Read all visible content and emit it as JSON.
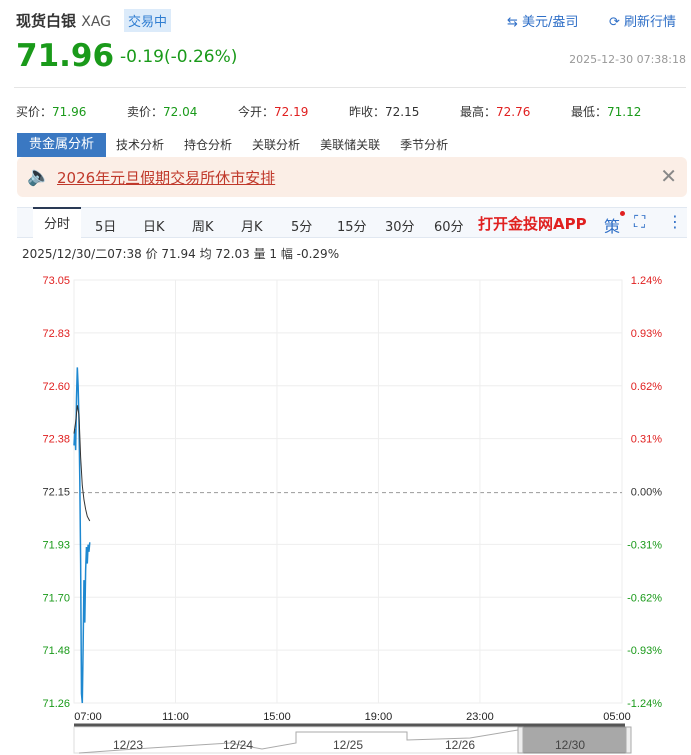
{
  "header": {
    "name": "现货白银",
    "code": "XAG",
    "status": "交易中",
    "currency_link": "美元/盎司",
    "refresh_link": "刷新行情"
  },
  "quote": {
    "price": "71.96",
    "change": "-0.19(-0.26%)",
    "timestamp": "2025-12-30 07:38:18"
  },
  "stats": [
    {
      "label": "买价：",
      "value": "71.96",
      "color": "green"
    },
    {
      "label": "卖价：",
      "value": "72.04",
      "color": "green"
    },
    {
      "label": "今开：",
      "value": "72.19",
      "color": "red"
    },
    {
      "label": "昨收：",
      "value": "72.15",
      "color": "neutral"
    },
    {
      "label": "最高：",
      "value": "72.76",
      "color": "red"
    },
    {
      "label": "最低：",
      "value": "71.12",
      "color": "green"
    }
  ],
  "analysis_tabs": [
    "贵金属分析",
    "技术分析",
    "持仓分析",
    "关联分析",
    "美联储关联",
    "季节分析"
  ],
  "notice": {
    "text": "2026年元旦假期交易所休市安排",
    "icon": "speaker-icon"
  },
  "period_tabs": [
    "分时",
    "5日",
    "日K",
    "周K",
    "月K",
    "5分",
    "15分",
    "30分",
    "60分"
  ],
  "app_link": "打开金投网APP",
  "strategy_label": "策",
  "crosshair_info": "2025/12/30/二07:38  价 71.94  均 72.03  量 1  幅 -0.29%",
  "colors": {
    "up": "#e02020",
    "down": "#1a9a1a",
    "price_line": "#1e88d0",
    "avg_line": "#333333",
    "accent": "#3a78c2"
  },
  "chart_data": {
    "type": "line",
    "y_ticks": [
      "73.05",
      "72.83",
      "72.60",
      "72.38",
      "72.15",
      "71.93",
      "71.70",
      "71.48",
      "71.26"
    ],
    "pct_ticks": [
      "1.24%",
      "0.93%",
      "0.62%",
      "0.31%",
      "0.00%",
      "-0.31%",
      "-0.62%",
      "-0.93%",
      "-1.24%"
    ],
    "ylim": [
      71.26,
      73.05
    ],
    "prev_close": 72.15,
    "x_ticks": [
      "07:00",
      "11:00",
      "15:00",
      "19:00",
      "23:00",
      "05:00"
    ],
    "series": [
      {
        "times": [
          "07:00",
          "07:02",
          "07:04",
          "07:06",
          "07:08",
          "07:10",
          "07:12",
          "07:14",
          "07:16",
          "07:18",
          "07:20",
          "07:22",
          "07:24",
          "07:26",
          "07:28",
          "07:30",
          "07:32",
          "07:34",
          "07:36",
          "07:38"
        ],
        "values": [
          72.35,
          72.42,
          72.33,
          72.55,
          72.68,
          72.6,
          72.45,
          72.2,
          71.85,
          71.3,
          71.26,
          71.5,
          71.78,
          71.6,
          71.82,
          71.92,
          71.85,
          71.93,
          71.9,
          71.94
        ]
      },
      {
        "times": [
          "07:00",
          "07:04",
          "07:08",
          "07:12",
          "07:16",
          "07:20",
          "07:24",
          "07:28",
          "07:32",
          "07:38"
        ],
        "values": [
          72.4,
          72.45,
          72.52,
          72.48,
          72.3,
          72.18,
          72.12,
          72.08,
          72.05,
          72.03
        ]
      }
    ],
    "navigator_dates": [
      "12/23",
      "12/24",
      "12/25",
      "12/26",
      "12/30"
    ]
  }
}
